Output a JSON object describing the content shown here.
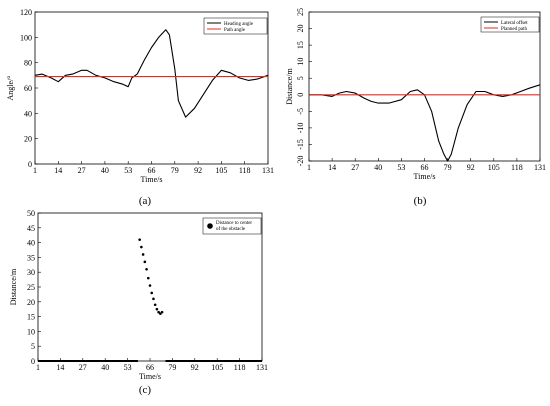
{
  "chart_data": [
    {
      "type": "line",
      "panel_label": "(a)",
      "xlabel": "Time/s",
      "ylabel": "Angle/°",
      "xlim": [
        1,
        131
      ],
      "ylim": [
        0,
        120
      ],
      "x_ticks": [
        1,
        14,
        27,
        40,
        53,
        66,
        79,
        92,
        105,
        118,
        131
      ],
      "y_ticks": [
        0,
        20,
        40,
        60,
        80,
        100,
        120
      ],
      "legend_position": "top-right",
      "series": [
        {
          "name": "Heading angle",
          "color": "#000000",
          "x": [
            1,
            5,
            10,
            14,
            18,
            22,
            27,
            30,
            35,
            40,
            45,
            50,
            53,
            55,
            58,
            62,
            66,
            70,
            74,
            76,
            79,
            81,
            85,
            90,
            95,
            100,
            105,
            110,
            115,
            120,
            125,
            131
          ],
          "y": [
            70,
            71,
            68,
            65,
            70,
            71,
            74,
            74,
            70,
            68,
            65,
            63,
            61,
            68,
            71,
            82,
            92,
            100,
            106,
            102,
            75,
            50,
            37,
            44,
            55,
            66,
            74,
            72,
            68,
            66,
            67,
            70
          ]
        },
        {
          "name": "Path  angle",
          "color": "#e8291c",
          "x": [
            1,
            131
          ],
          "y": [
            69,
            69
          ]
        }
      ]
    },
    {
      "type": "line",
      "panel_label": "(b)",
      "xlabel": "Time/s",
      "ylabel": "Distance/m",
      "xlim": [
        1,
        131
      ],
      "ylim": [
        -20,
        25
      ],
      "x_ticks": [
        1,
        14,
        27,
        40,
        53,
        66,
        79,
        92,
        105,
        118,
        131
      ],
      "y_ticks": [
        -20,
        -15,
        -10,
        -5,
        0,
        5,
        10,
        15,
        20,
        25
      ],
      "legend_position": "top-right",
      "series": [
        {
          "name": "Lateral offset",
          "color": "#000000",
          "x": [
            1,
            8,
            14,
            18,
            22,
            27,
            32,
            36,
            40,
            46,
            53,
            58,
            62,
            66,
            70,
            74,
            77,
            79,
            81,
            85,
            90,
            95,
            100,
            105,
            110,
            115,
            120,
            125,
            131
          ],
          "y": [
            0,
            0,
            -0.5,
            0.5,
            1,
            0.5,
            -1,
            -2,
            -2.5,
            -2.5,
            -1.5,
            1,
            1.5,
            0,
            -5,
            -14,
            -18,
            -20,
            -18,
            -10,
            -3,
            1,
            1,
            0,
            -0.5,
            0,
            1,
            2,
            3
          ]
        },
        {
          "name": "Planned path",
          "color": "#e8291c",
          "x": [
            1,
            131
          ],
          "y": [
            0,
            0
          ]
        }
      ]
    },
    {
      "type": "scatter",
      "panel_label": "(c)",
      "xlabel": "Time/s",
      "ylabel": "Distance/m",
      "xlim": [
        1,
        131
      ],
      "ylim": [
        0,
        50
      ],
      "x_ticks": [
        1,
        14,
        27,
        40,
        53,
        66,
        79,
        92,
        105,
        118,
        131
      ],
      "y_ticks": [
        0,
        5,
        10,
        15,
        20,
        25,
        30,
        35,
        40,
        45,
        50
      ],
      "legend_position": "top-right",
      "series": [
        {
          "name": "Distance to center of the obstacle",
          "color": "#000000",
          "x": [
            60,
            61,
            62,
            63,
            64,
            65,
            66,
            67,
            68,
            69,
            70,
            71,
            72,
            73
          ],
          "y": [
            41,
            38.5,
            36,
            33.5,
            31,
            28,
            25.5,
            23,
            21,
            19,
            17.5,
            16.5,
            16,
            16.5
          ]
        },
        {
          "name": "baseline-left",
          "color": "#000000",
          "x": [
            1,
            59
          ],
          "y": [
            0,
            0
          ]
        },
        {
          "name": "baseline-right",
          "color": "#000000",
          "x": [
            75,
            131
          ],
          "y": [
            0,
            0
          ]
        }
      ]
    }
  ]
}
